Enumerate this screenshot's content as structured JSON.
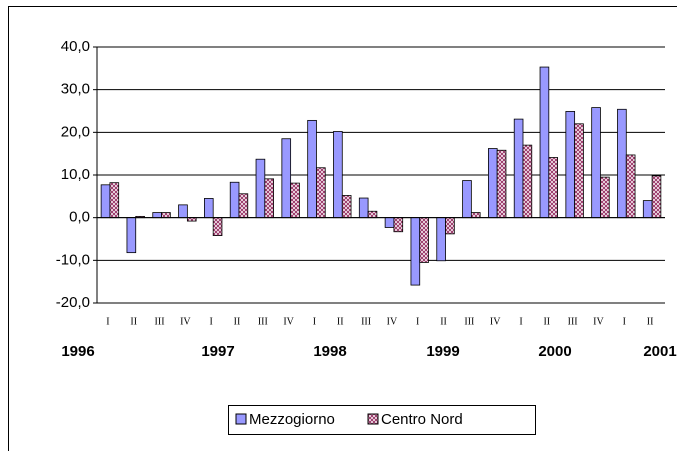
{
  "chart_data": {
    "type": "bar",
    "categories": [
      "I",
      "II",
      "III",
      "IV",
      "I",
      "II",
      "III",
      "IV",
      "I",
      "II",
      "III",
      "IV",
      "I",
      "II",
      "III",
      "IV",
      "I",
      "II",
      "III",
      "IV",
      "I",
      "II"
    ],
    "years": [
      "1996",
      "1997",
      "1998",
      "1999",
      "2000",
      "2001"
    ],
    "series": [
      {
        "name": "Mezzogiorno",
        "color": "#9999ff",
        "values": [
          7.7,
          -8.2,
          1.2,
          3.0,
          4.5,
          8.3,
          13.7,
          18.5,
          22.8,
          20.2,
          4.6,
          -2.3,
          -15.8,
          -10.1,
          8.7,
          16.2,
          23.1,
          35.3,
          24.9,
          25.8,
          25.4,
          4.0
        ]
      },
      {
        "name": "Centro Nord",
        "color": "#993366",
        "values": [
          8.2,
          0.3,
          1.2,
          -0.8,
          -4.2,
          5.6,
          9.1,
          8.1,
          11.7,
          5.2,
          1.5,
          -3.3,
          -10.5,
          -3.8,
          1.2,
          15.8,
          17.0,
          14.1,
          22.0,
          9.5,
          14.7,
          9.8
        ]
      }
    ],
    "ylim": [
      -20,
      40
    ],
    "yticks": [
      {
        "value": -20,
        "label": "-20,0"
      },
      {
        "value": -10,
        "label": "-10,0"
      },
      {
        "value": 0,
        "label": "0,0"
      },
      {
        "value": 10,
        "label": "10,0"
      },
      {
        "value": 20,
        "label": "20,0"
      },
      {
        "value": 30,
        "label": "30,0"
      },
      {
        "value": 40,
        "label": "40,0"
      }
    ],
    "grid": true,
    "legend": "bottom"
  }
}
